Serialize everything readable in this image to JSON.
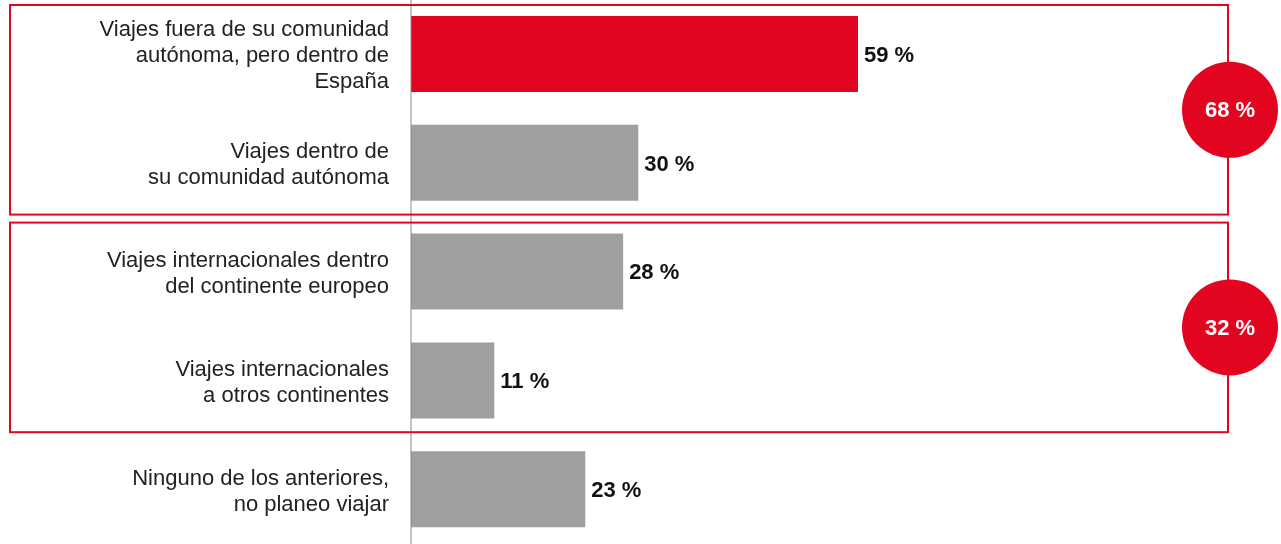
{
  "chart_data": {
    "type": "bar",
    "orientation": "horizontal",
    "categories": [
      "Viajes fuera de su comunidad\nautónoma, pero dentro de\nEspaña",
      "Viajes dentro de\nsu comunidad autónoma",
      "Viajes internacionales dentro\ndel continente europeo",
      "Viajes internacionales\na otros continentes",
      "Ninguno de los anteriores,\nno planeo viajar"
    ],
    "values": [
      59,
      30,
      28,
      11,
      23
    ],
    "colors": [
      "#e30520",
      "#a09f9d",
      "#a09f9d",
      "#a09f9d",
      "#a09f9d"
    ],
    "value_labels": [
      "59 %",
      "30 %",
      "28 %",
      "11 %",
      "23 %"
    ],
    "annotations": [
      "68 %",
      "32 %"
    ]
  }
}
